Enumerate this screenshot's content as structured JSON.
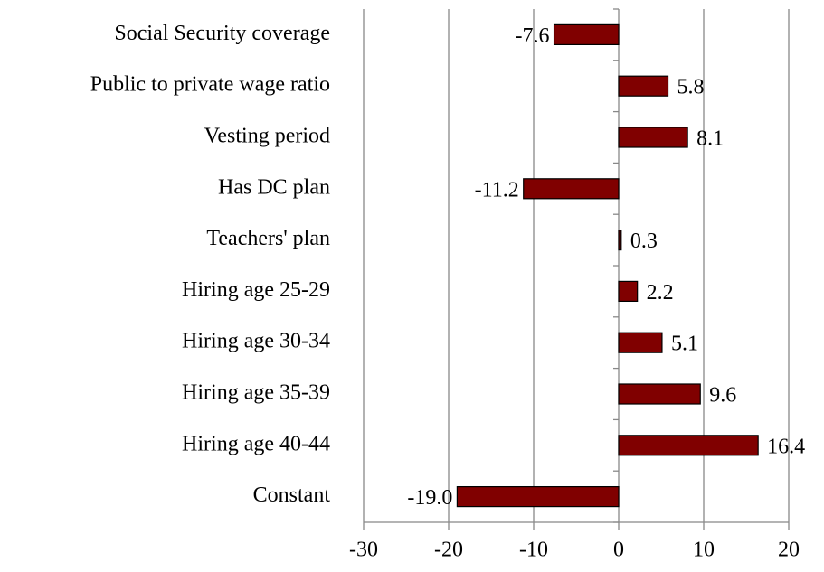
{
  "chart_data": {
    "type": "bar",
    "orientation": "horizontal",
    "categories": [
      "Social Security coverage",
      "Public to private wage ratio",
      "Vesting period",
      "Has DC plan",
      "Teachers' plan",
      "Hiring age 25-29",
      "Hiring age 30-34",
      "Hiring age 35-39",
      "Hiring age 40-44",
      "Constant"
    ],
    "values": [
      -7.6,
      5.8,
      8.1,
      -11.2,
      0.3,
      2.2,
      5.1,
      9.6,
      16.4,
      -19.0
    ],
    "value_labels": [
      "-7.6",
      "5.8",
      "8.1",
      "-11.2",
      "0.3",
      "2.2",
      "5.1",
      "9.6",
      "16.4",
      "-19.0"
    ],
    "color": "#800000",
    "xlim": [
      -30,
      20
    ],
    "xticks": [
      -30,
      -20,
      -10,
      0,
      10,
      20
    ],
    "grid": true
  }
}
